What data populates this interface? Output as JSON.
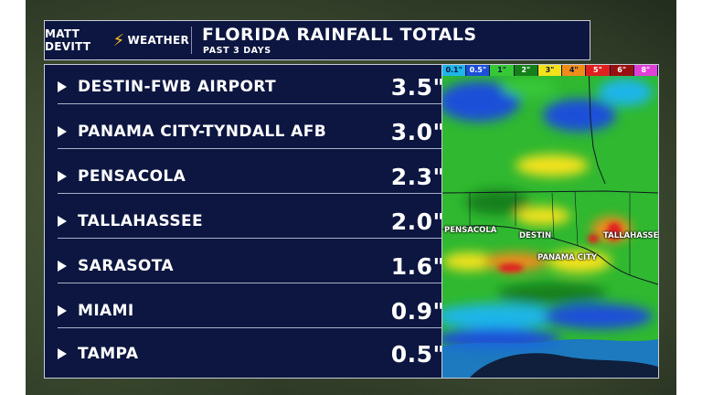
{
  "brand": {
    "name_left": "MATT DEVITT",
    "name_right": "WEATHER"
  },
  "header": {
    "title": "FLORIDA RAINFALL TOTALS",
    "subtitle": "PAST 3 DAYS"
  },
  "rainfall": [
    {
      "location": "DESTIN-FWB AIRPORT",
      "total": "3.5\""
    },
    {
      "location": "PANAMA CITY-TYNDALL AFB",
      "total": "3.0\""
    },
    {
      "location": "PENSACOLA",
      "total": "2.3\""
    },
    {
      "location": "TALLAHASSEE",
      "total": "2.0\""
    },
    {
      "location": "SARASOTA",
      "total": "1.6\""
    },
    {
      "location": "MIAMI",
      "total": "0.9\""
    },
    {
      "location": "TAMPA",
      "total": "0.5\""
    }
  ],
  "map": {
    "legend": [
      {
        "label": "0.1\"",
        "color": "#1fb5e8",
        "text": "#0c1640"
      },
      {
        "label": "0.5\"",
        "color": "#1c4fd8",
        "text": "#ffffff"
      },
      {
        "label": "1\"",
        "color": "#37c837",
        "text": "#0c1640"
      },
      {
        "label": "2\"",
        "color": "#15801a",
        "text": "#ffffff"
      },
      {
        "label": "3\"",
        "color": "#f3e21a",
        "text": "#0c1640"
      },
      {
        "label": "4\"",
        "color": "#f08c1a",
        "text": "#0c1640"
      },
      {
        "label": "5\"",
        "color": "#e02020",
        "text": "#ffffff"
      },
      {
        "label": "6\"",
        "color": "#9a1010",
        "text": "#ffffff"
      },
      {
        "label": "8\"",
        "color": "#e040d8",
        "text": "#ffffff"
      }
    ],
    "cities": {
      "pensacola": "PENSACOLA",
      "destin": "DESTIN",
      "panama_city": "PANAMA CITY",
      "tallahassee": "TALLAHASSE"
    }
  },
  "colors": {
    "panel": "#0c1640",
    "border": "#c8ccd8",
    "bolt": "#ffc21a"
  }
}
